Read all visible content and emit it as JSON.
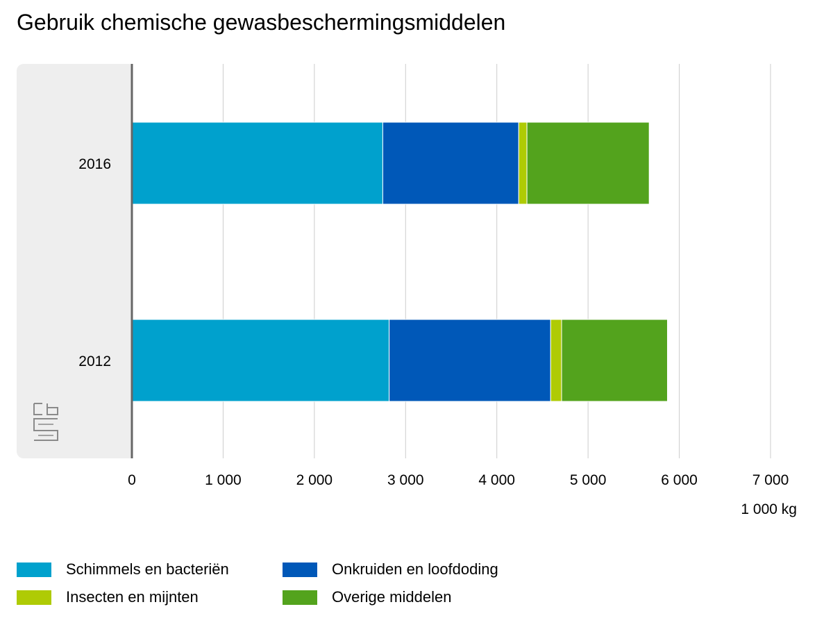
{
  "title": "Gebruik chemische gewasbeschermingsmiddelen",
  "unit_label": "1 000 kg",
  "logo_text": "cbs",
  "colors": {
    "panel": "#eeeeee",
    "grid": "#cccccc",
    "axis": "#666666",
    "series": [
      "#00a1cd",
      "#0058b8",
      "#afcb05",
      "#53a31d"
    ]
  },
  "chart_data": {
    "type": "bar",
    "orientation": "horizontal",
    "stacked": true,
    "title": "Gebruik chemische gewasbeschermingsmiddelen",
    "xlabel": "1 000 kg",
    "ylabel": "",
    "xlim": [
      0,
      7000
    ],
    "xticks": [
      0,
      1000,
      2000,
      3000,
      4000,
      5000,
      6000,
      7000
    ],
    "xtick_labels": [
      "0",
      "1 000",
      "2 000",
      "3 000",
      "4 000",
      "5 000",
      "6 000",
      "7 000"
    ],
    "grid": true,
    "legend_position": "bottom",
    "categories": [
      "2016",
      "2012"
    ],
    "series": [
      {
        "name": "Schimmels en bacteriën",
        "color": "#00a1cd",
        "values": [
          2750,
          2820
        ]
      },
      {
        "name": "Onkruiden en loofdoding",
        "color": "#0058b8",
        "values": [
          1490,
          1770
        ]
      },
      {
        "name": "Insecten en mijnten",
        "color": "#afcb05",
        "values": [
          90,
          120
        ]
      },
      {
        "name": "Overige middelen",
        "color": "#53a31d",
        "values": [
          1340,
          1160
        ]
      }
    ]
  }
}
